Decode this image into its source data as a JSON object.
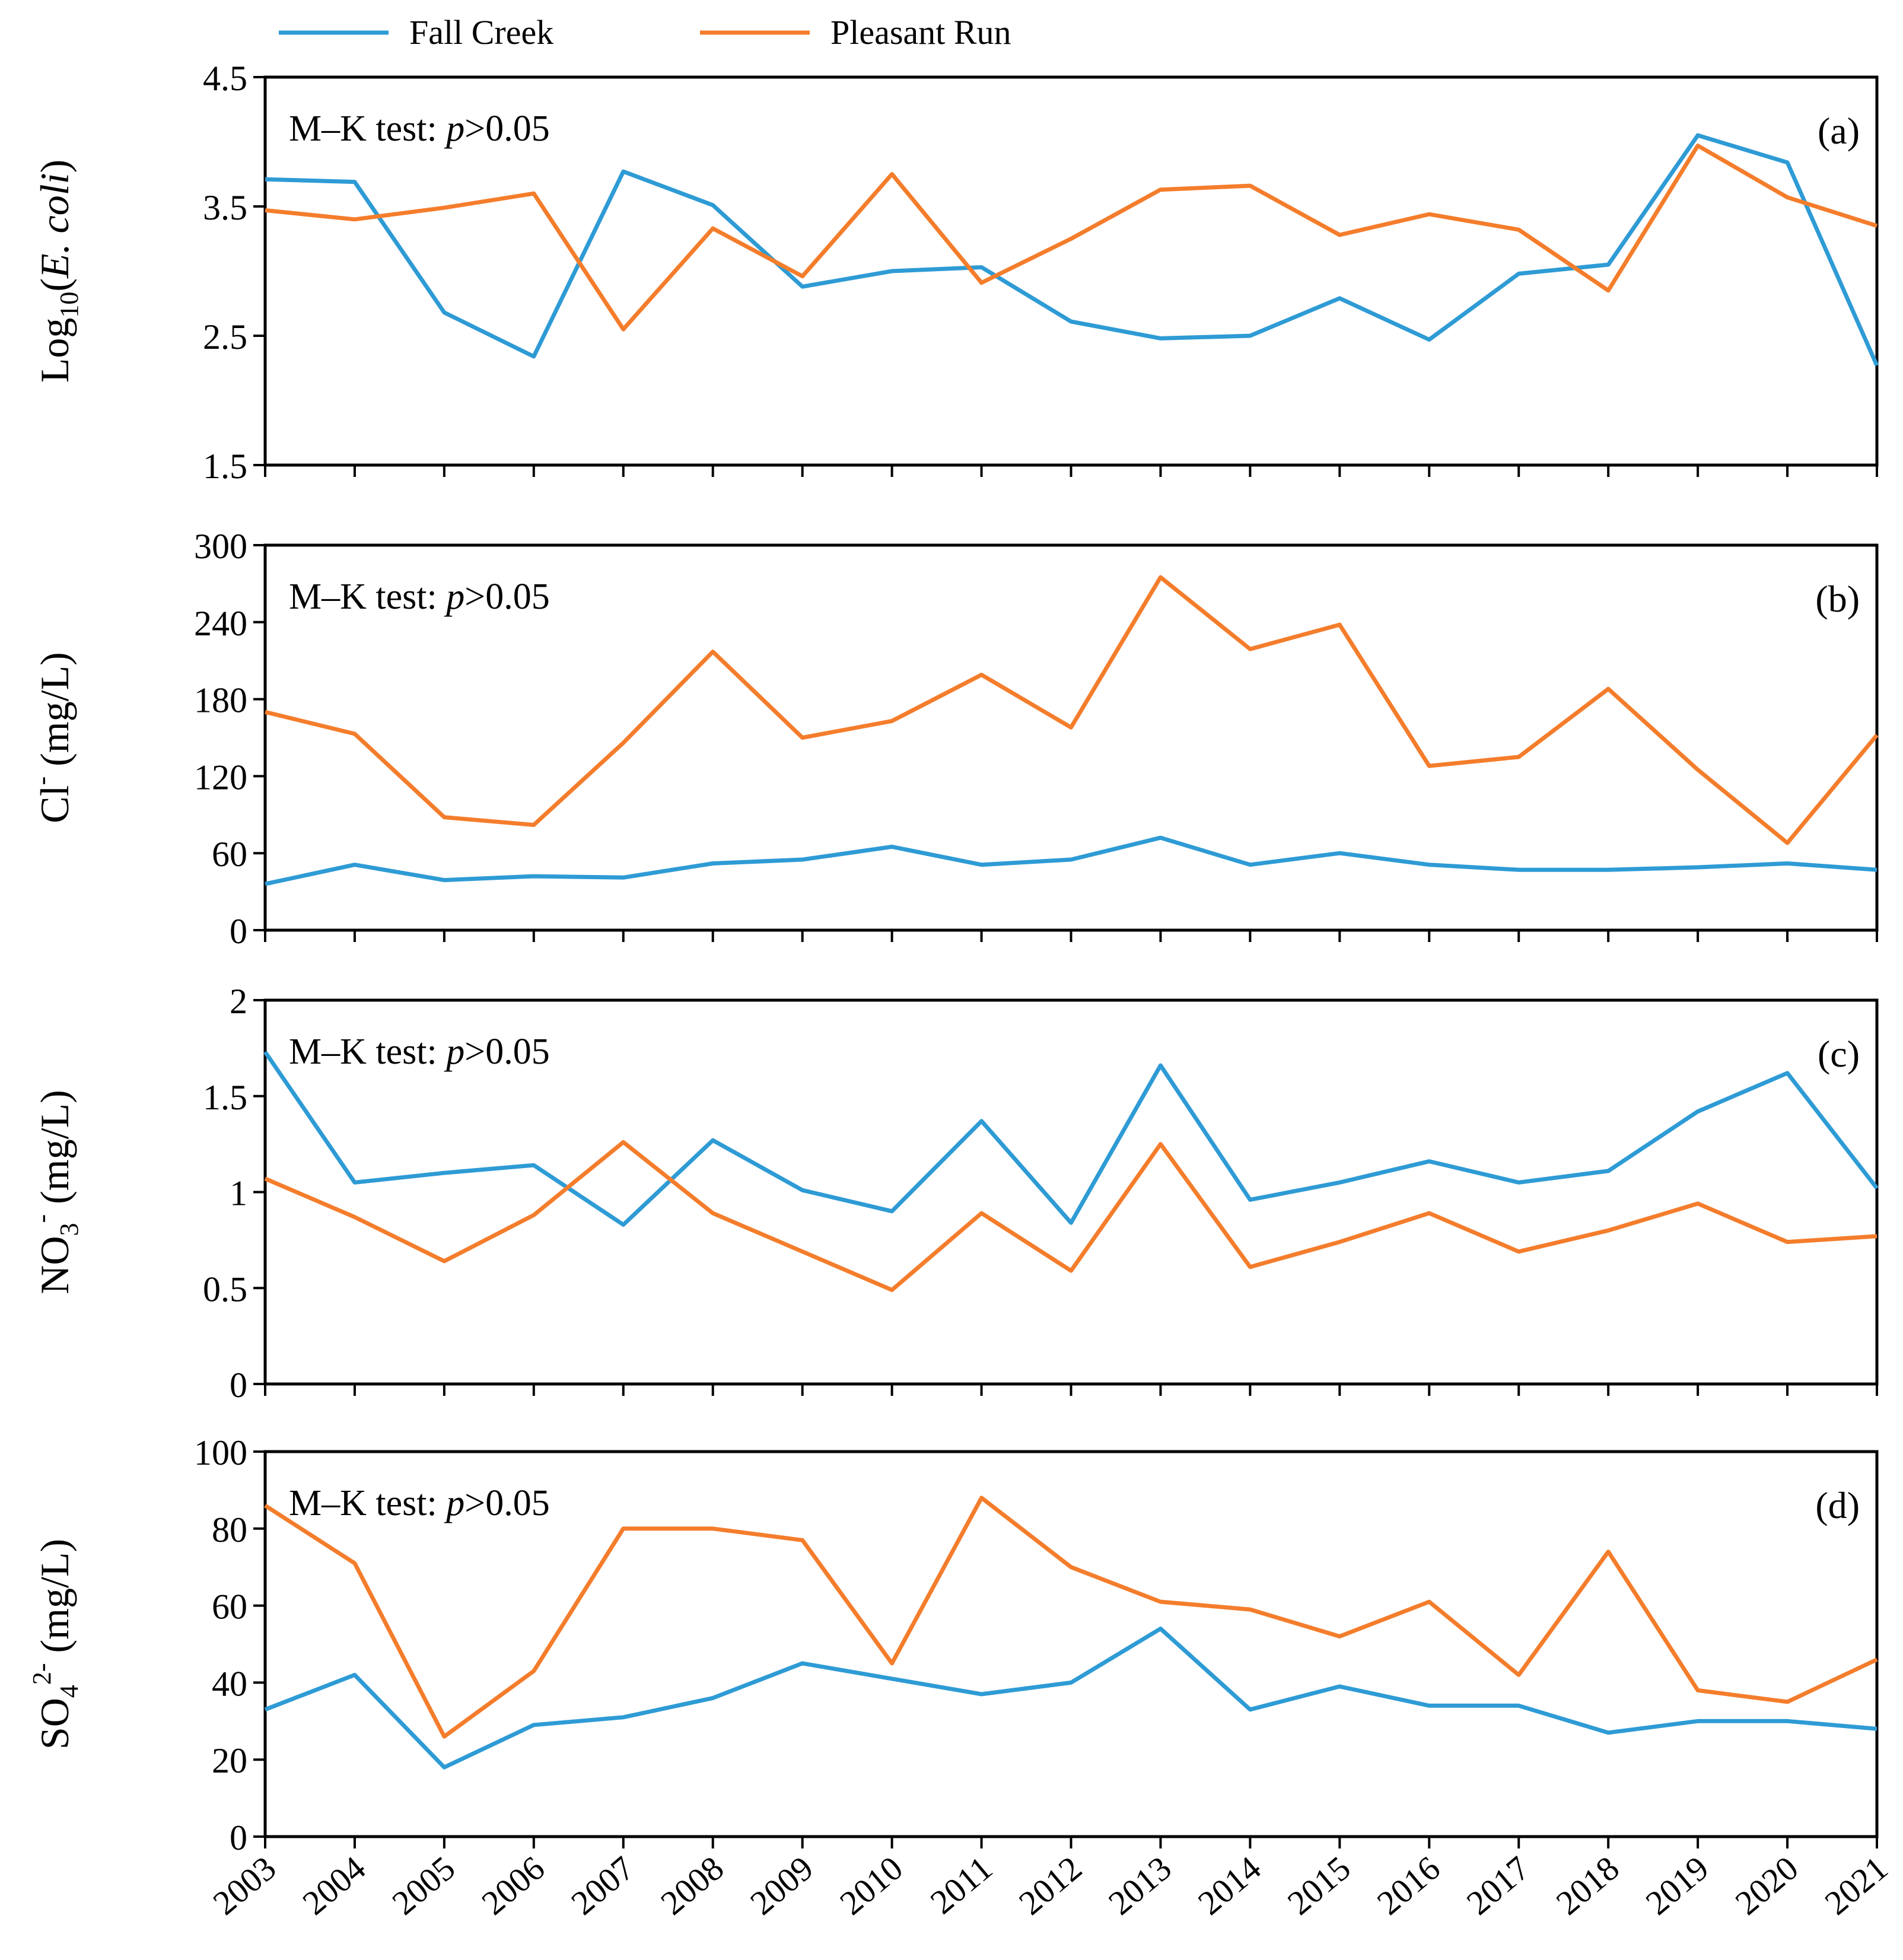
{
  "figure": {
    "legend": [
      {
        "name": "Fall Creek",
        "color": "#2E9BD5"
      },
      {
        "name": "Pleasant Run",
        "color": "#F47D2C"
      }
    ],
    "colors": {
      "fall_creek": "#2E9BD5",
      "pleasant_run": "#F47D2C",
      "axis": "#000000"
    }
  },
  "chart_data": [
    {
      "type": "line",
      "panel_label": "(a)",
      "annotation": {
        "prefix": "M–K test: ",
        "italic": "p",
        "suffix": ">0.05"
      },
      "ylabel": {
        "base": "Log",
        "sub": "10",
        "open": "(",
        "italic": "E. coli",
        "close": ")"
      },
      "ylim": [
        1.5,
        4.5
      ],
      "yticks": [
        1.5,
        2.5,
        3.5,
        4.5
      ],
      "ytick_labels": [
        "1.5",
        "2.5",
        "3.5",
        "4.5"
      ],
      "x": [
        2003,
        2004,
        2005,
        2006,
        2007,
        2008,
        2009,
        2010,
        2011,
        2012,
        2013,
        2014,
        2015,
        2016,
        2017,
        2018,
        2019,
        2020,
        2021
      ],
      "series": [
        {
          "name": "Fall Creek",
          "values": [
            3.71,
            3.69,
            2.68,
            2.34,
            3.77,
            3.51,
            2.88,
            3.0,
            3.03,
            2.61,
            2.48,
            2.5,
            2.79,
            2.47,
            2.98,
            3.05,
            4.05,
            3.84,
            2.27
          ]
        },
        {
          "name": "Pleasant Run",
          "values": [
            3.47,
            3.4,
            3.49,
            3.6,
            2.55,
            3.33,
            2.96,
            3.75,
            2.91,
            3.25,
            3.63,
            3.66,
            3.28,
            3.44,
            3.32,
            2.85,
            3.97,
            3.57,
            3.35
          ]
        }
      ]
    },
    {
      "type": "line",
      "panel_label": "(b)",
      "annotation": {
        "prefix": "M–K test: ",
        "italic": "p",
        "suffix": ">0.05"
      },
      "ylabel": {
        "base": "Cl",
        "sup": "-",
        "unit": " (mg/L)"
      },
      "ylim": [
        0,
        300
      ],
      "yticks": [
        0,
        60,
        120,
        180,
        240,
        300
      ],
      "ytick_labels": [
        "0",
        "60",
        "120",
        "180",
        "240",
        "300"
      ],
      "x": [
        2003,
        2004,
        2005,
        2006,
        2007,
        2008,
        2009,
        2010,
        2011,
        2012,
        2013,
        2014,
        2015,
        2016,
        2017,
        2018,
        2019,
        2020,
        2021
      ],
      "series": [
        {
          "name": "Fall Creek",
          "values": [
            36,
            51,
            39,
            42,
            41,
            52,
            55,
            65,
            51,
            55,
            72,
            51,
            60,
            51,
            47,
            47,
            49,
            52,
            47
          ]
        },
        {
          "name": "Pleasant Run",
          "values": [
            170,
            153,
            88,
            82,
            146,
            217,
            150,
            163,
            199,
            158,
            275,
            219,
            238,
            128,
            135,
            188,
            125,
            68,
            152
          ]
        }
      ]
    },
    {
      "type": "line",
      "panel_label": "(c)",
      "annotation": {
        "prefix": "M–K test: ",
        "italic": "p",
        "suffix": ">0.05"
      },
      "ylabel": {
        "base": "NO",
        "sub": "3",
        "sup": "-",
        "unit": " (mg/L)"
      },
      "ylim": [
        0,
        2
      ],
      "yticks": [
        0,
        0.5,
        1,
        1.5,
        2
      ],
      "ytick_labels": [
        "0",
        "0.5",
        "1",
        "1.5",
        "2"
      ],
      "x": [
        2003,
        2004,
        2005,
        2006,
        2007,
        2008,
        2009,
        2010,
        2011,
        2012,
        2013,
        2014,
        2015,
        2016,
        2017,
        2018,
        2019,
        2020,
        2021
      ],
      "series": [
        {
          "name": "Fall Creek",
          "values": [
            1.73,
            1.05,
            1.1,
            1.14,
            0.83,
            1.27,
            1.01,
            0.9,
            1.37,
            0.84,
            1.66,
            0.96,
            1.05,
            1.16,
            1.05,
            1.11,
            1.42,
            1.62,
            1.02
          ]
        },
        {
          "name": "Pleasant Run",
          "values": [
            1.07,
            0.87,
            0.64,
            0.88,
            1.26,
            0.89,
            0.69,
            0.49,
            0.89,
            0.59,
            1.25,
            0.61,
            0.74,
            0.89,
            0.69,
            0.8,
            0.94,
            0.74,
            0.77
          ]
        }
      ]
    },
    {
      "type": "line",
      "panel_label": "(d)",
      "annotation": {
        "prefix": "M–K test: ",
        "italic": "p",
        "suffix": ">0.05"
      },
      "ylabel": {
        "base": "SO",
        "sub": "4",
        "sup": "2-",
        "unit": " (mg/L)"
      },
      "ylim": [
        0,
        100
      ],
      "yticks": [
        0,
        20,
        40,
        60,
        80,
        100
      ],
      "ytick_labels": [
        "0",
        "20",
        "40",
        "60",
        "80",
        "100"
      ],
      "x": [
        2003,
        2004,
        2005,
        2006,
        2007,
        2008,
        2009,
        2010,
        2011,
        2012,
        2013,
        2014,
        2015,
        2016,
        2017,
        2018,
        2019,
        2020,
        2021
      ],
      "xtick_labels": [
        "2003",
        "2004",
        "2005",
        "2006",
        "2007",
        "2008",
        "2009",
        "2010",
        "2011",
        "2012",
        "2013",
        "2014",
        "2015",
        "2016",
        "2017",
        "2018",
        "2019",
        "2020",
        "2021"
      ],
      "series": [
        {
          "name": "Fall Creek",
          "values": [
            33,
            42,
            18,
            29,
            31,
            36,
            45,
            41,
            37,
            40,
            54,
            33,
            39,
            34,
            34,
            27,
            30,
            30,
            28
          ]
        },
        {
          "name": "Pleasant Run",
          "values": [
            86,
            71,
            26,
            43,
            80,
            80,
            77,
            45,
            88,
            70,
            61,
            59,
            52,
            61,
            42,
            74,
            38,
            35,
            46
          ]
        }
      ]
    }
  ]
}
